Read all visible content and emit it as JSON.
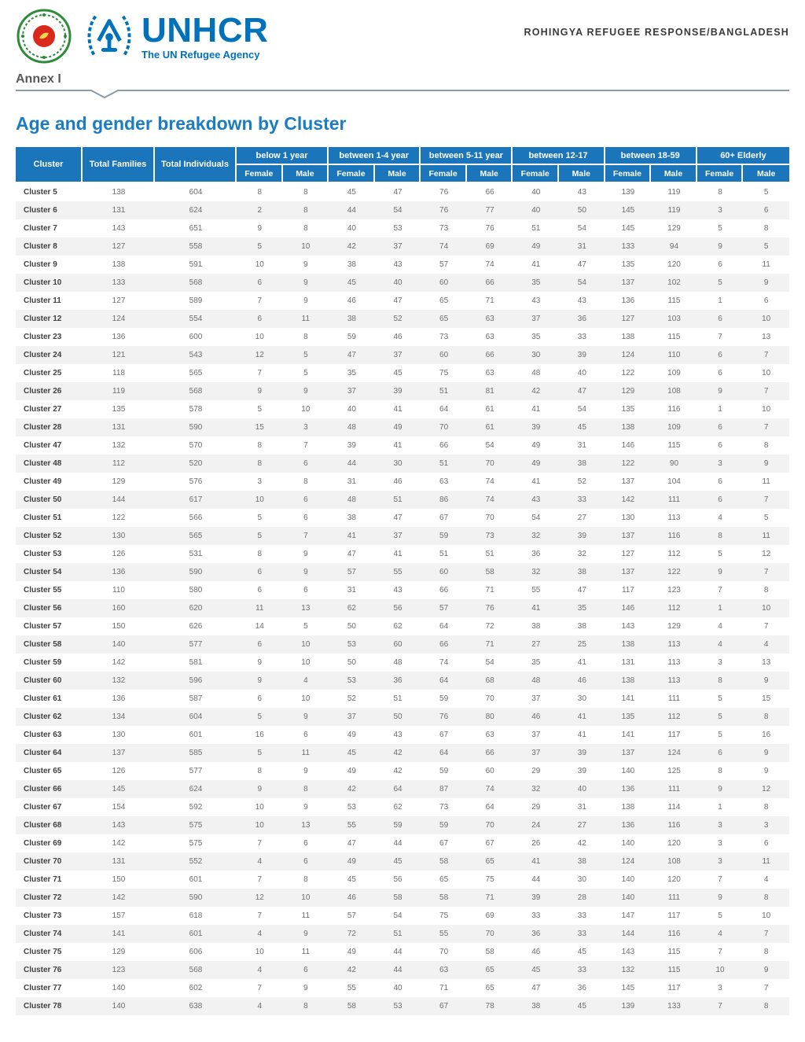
{
  "header": {
    "brand": "UNHCR",
    "tagline": "The UN Refugee Agency",
    "right_text": "ROHINGYA REFUGEE RESPONSE/BANGLADESH",
    "annex": "Annex I",
    "title": "Age and gender breakdown by Cluster"
  },
  "icons": {
    "left_logo": "bangladesh-govt-seal",
    "brand_logo": "unhcr-emblem"
  },
  "colors": {
    "unhcr_blue": "#0072BC",
    "table_header_blue": "#1B75BB",
    "title_blue": "#1A7DC4",
    "row_stripe": "#F2F2F2",
    "body_text": "#6d6e71",
    "divider_gray": "#8A9BA8"
  },
  "table": {
    "fixed_headers": [
      "Cluster",
      "Total Families",
      "Total Individuals"
    ],
    "age_groups": [
      "below 1 year",
      "between 1-4 year",
      "between 5-11 year",
      "between 12-17",
      "between 18-59",
      "60+ Elderly"
    ],
    "sub_headers": [
      "Female",
      "Male"
    ],
    "rows": [
      [
        "Cluster 5",
        138,
        604,
        8,
        8,
        45,
        47,
        76,
        66,
        40,
        43,
        139,
        119,
        8,
        5
      ],
      [
        "Cluster 6",
        131,
        624,
        2,
        8,
        44,
        54,
        76,
        77,
        40,
        50,
        145,
        119,
        3,
        6
      ],
      [
        "Cluster 7",
        143,
        651,
        9,
        8,
        40,
        53,
        73,
        76,
        51,
        54,
        145,
        129,
        5,
        8
      ],
      [
        "Cluster 8",
        127,
        558,
        5,
        10,
        42,
        37,
        74,
        69,
        49,
        31,
        133,
        94,
        9,
        5
      ],
      [
        "Cluster 9",
        138,
        591,
        10,
        9,
        38,
        43,
        57,
        74,
        41,
        47,
        135,
        120,
        6,
        11
      ],
      [
        "Cluster 10",
        133,
        568,
        6,
        9,
        45,
        40,
        60,
        66,
        35,
        54,
        137,
        102,
        5,
        9
      ],
      [
        "Cluster 11",
        127,
        589,
        7,
        9,
        46,
        47,
        65,
        71,
        43,
        43,
        136,
        115,
        1,
        6
      ],
      [
        "Cluster 12",
        124,
        554,
        6,
        11,
        38,
        52,
        65,
        63,
        37,
        36,
        127,
        103,
        6,
        10
      ],
      [
        "Cluster 23",
        136,
        600,
        10,
        8,
        59,
        46,
        73,
        63,
        35,
        33,
        138,
        115,
        7,
        13
      ],
      [
        "Cluster 24",
        121,
        543,
        12,
        5,
        47,
        37,
        60,
        66,
        30,
        39,
        124,
        110,
        6,
        7
      ],
      [
        "Cluster 25",
        118,
        565,
        7,
        5,
        35,
        45,
        75,
        63,
        48,
        40,
        122,
        109,
        6,
        10
      ],
      [
        "Cluster 26",
        119,
        568,
        9,
        9,
        37,
        39,
        51,
        81,
        42,
        47,
        129,
        108,
        9,
        7
      ],
      [
        "Cluster 27",
        135,
        578,
        5,
        10,
        40,
        41,
        64,
        61,
        41,
        54,
        135,
        116,
        1,
        10
      ],
      [
        "Cluster 28",
        131,
        590,
        15,
        3,
        48,
        49,
        70,
        61,
        39,
        45,
        138,
        109,
        6,
        7
      ],
      [
        "Cluster 47",
        132,
        570,
        8,
        7,
        39,
        41,
        66,
        54,
        49,
        31,
        146,
        115,
        6,
        8
      ],
      [
        "Cluster 48",
        112,
        520,
        8,
        6,
        44,
        30,
        51,
        70,
        49,
        38,
        122,
        90,
        3,
        9
      ],
      [
        "Cluster 49",
        129,
        576,
        3,
        8,
        31,
        46,
        63,
        74,
        41,
        52,
        137,
        104,
        6,
        11
      ],
      [
        "Cluster 50",
        144,
        617,
        10,
        6,
        48,
        51,
        86,
        74,
        43,
        33,
        142,
        111,
        6,
        7
      ],
      [
        "Cluster 51",
        122,
        566,
        5,
        6,
        38,
        47,
        67,
        70,
        54,
        27,
        130,
        113,
        4,
        5
      ],
      [
        "Cluster 52",
        130,
        565,
        5,
        7,
        41,
        37,
        59,
        73,
        32,
        39,
        137,
        116,
        8,
        11
      ],
      [
        "Cluster 53",
        126,
        531,
        8,
        9,
        47,
        41,
        51,
        51,
        36,
        32,
        127,
        112,
        5,
        12
      ],
      [
        "Cluster 54",
        136,
        590,
        6,
        9,
        57,
        55,
        60,
        58,
        32,
        38,
        137,
        122,
        9,
        7
      ],
      [
        "Cluster 55",
        110,
        580,
        6,
        6,
        31,
        43,
        66,
        71,
        55,
        47,
        117,
        123,
        7,
        8
      ],
      [
        "Cluster 56",
        160,
        620,
        11,
        13,
        62,
        56,
        57,
        76,
        41,
        35,
        146,
        112,
        1,
        10
      ],
      [
        "Cluster 57",
        150,
        626,
        14,
        5,
        50,
        62,
        64,
        72,
        38,
        38,
        143,
        129,
        4,
        7
      ],
      [
        "Cluster 58",
        140,
        577,
        6,
        10,
        53,
        60,
        66,
        71,
        27,
        25,
        138,
        113,
        4,
        4
      ],
      [
        "Cluster 59",
        142,
        581,
        9,
        10,
        50,
        48,
        74,
        54,
        35,
        41,
        131,
        113,
        3,
        13
      ],
      [
        "Cluster 60",
        132,
        596,
        9,
        4,
        53,
        36,
        64,
        68,
        48,
        46,
        138,
        113,
        8,
        9
      ],
      [
        "Cluster 61",
        136,
        587,
        6,
        10,
        52,
        51,
        59,
        70,
        37,
        30,
        141,
        111,
        5,
        15
      ],
      [
        "Cluster 62",
        134,
        604,
        5,
        9,
        37,
        50,
        76,
        80,
        46,
        41,
        135,
        112,
        5,
        8
      ],
      [
        "Cluster 63",
        130,
        601,
        16,
        6,
        49,
        43,
        67,
        63,
        37,
        41,
        141,
        117,
        5,
        16
      ],
      [
        "Cluster 64",
        137,
        585,
        5,
        11,
        45,
        42,
        64,
        66,
        37,
        39,
        137,
        124,
        6,
        9
      ],
      [
        "Cluster 65",
        126,
        577,
        8,
        9,
        49,
        42,
        59,
        60,
        29,
        39,
        140,
        125,
        8,
        9
      ],
      [
        "Cluster 66",
        145,
        624,
        9,
        8,
        42,
        64,
        87,
        74,
        32,
        40,
        136,
        111,
        9,
        12
      ],
      [
        "Cluster 67",
        154,
        592,
        10,
        9,
        53,
        62,
        73,
        64,
        29,
        31,
        138,
        114,
        1,
        8
      ],
      [
        "Cluster 68",
        143,
        575,
        10,
        13,
        55,
        59,
        59,
        70,
        24,
        27,
        136,
        116,
        3,
        3
      ],
      [
        "Cluster 69",
        142,
        575,
        7,
        6,
        47,
        44,
        67,
        67,
        26,
        42,
        140,
        120,
        3,
        6
      ],
      [
        "Cluster 70",
        131,
        552,
        4,
        6,
        49,
        45,
        58,
        65,
        41,
        38,
        124,
        108,
        3,
        11
      ],
      [
        "Cluster 71",
        150,
        601,
        7,
        8,
        45,
        56,
        65,
        75,
        44,
        30,
        140,
        120,
        7,
        4
      ],
      [
        "Cluster 72",
        142,
        590,
        12,
        10,
        46,
        58,
        58,
        71,
        39,
        28,
        140,
        111,
        9,
        8
      ],
      [
        "Cluster 73",
        157,
        618,
        7,
        11,
        57,
        54,
        75,
        69,
        33,
        33,
        147,
        117,
        5,
        10
      ],
      [
        "Cluster 74",
        141,
        601,
        4,
        9,
        72,
        51,
        55,
        70,
        36,
        33,
        144,
        116,
        4,
        7
      ],
      [
        "Cluster 75",
        129,
        606,
        10,
        11,
        49,
        44,
        70,
        58,
        46,
        45,
        143,
        115,
        7,
        8
      ],
      [
        "Cluster 76",
        123,
        568,
        4,
        6,
        42,
        44,
        63,
        65,
        45,
        33,
        132,
        115,
        10,
        9
      ],
      [
        "Cluster 77",
        140,
        602,
        7,
        9,
        55,
        40,
        71,
        65,
        47,
        36,
        145,
        117,
        3,
        7
      ],
      [
        "Cluster 78",
        140,
        638,
        4,
        8,
        58,
        53,
        67,
        78,
        38,
        45,
        139,
        133,
        7,
        8
      ]
    ]
  }
}
